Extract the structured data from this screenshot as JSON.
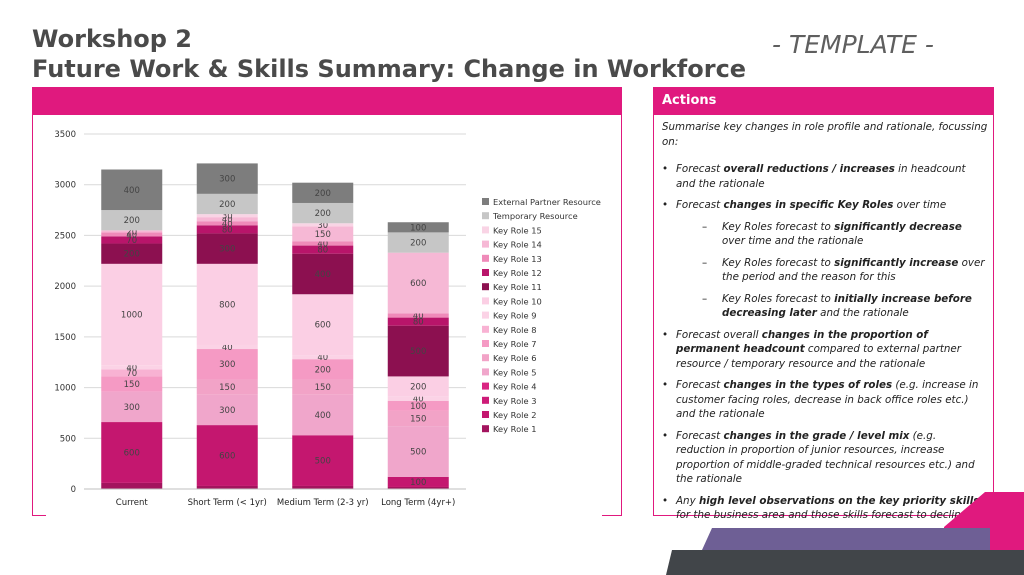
{
  "slide": {
    "title_line1": "Workshop 2",
    "title_line2": "Future Work & Skills Summary: Change in Workforce",
    "template_label": "- TEMPLATE -"
  },
  "actions": {
    "header": "Actions",
    "intro": "Summarise key changes in role profile and rationale, focussing on:",
    "bullets": [
      {
        "level": 1,
        "parts": [
          {
            "t": "Forecast "
          },
          {
            "t": "overall reductions / increases",
            "b": true
          },
          {
            "t": " in headcount and the rationale"
          }
        ]
      },
      {
        "level": 1,
        "parts": [
          {
            "t": "Forecast "
          },
          {
            "t": "changes in specific Key Roles",
            "b": true
          },
          {
            "t": " over time"
          }
        ]
      },
      {
        "level": 2,
        "parts": [
          {
            "t": "Key Roles forecast to "
          },
          {
            "t": "significantly decrease",
            "b": true
          },
          {
            "t": " over time and the rationale"
          }
        ]
      },
      {
        "level": 2,
        "parts": [
          {
            "t": "Key Roles forecast to "
          },
          {
            "t": "significantly increase",
            "b": true
          },
          {
            "t": " over the period and the reason for this"
          }
        ]
      },
      {
        "level": 2,
        "parts": [
          {
            "t": "Key Roles forecast to "
          },
          {
            "t": "initially increase before decreasing later",
            "b": true
          },
          {
            "t": " and the rationale"
          }
        ]
      },
      {
        "level": 1,
        "parts": [
          {
            "t": "Forecast overall "
          },
          {
            "t": "changes in the proportion of permanent headcount",
            "b": true
          },
          {
            "t": " compared to external partner resource / temporary resource and the rationale"
          }
        ]
      },
      {
        "level": 1,
        "parts": [
          {
            "t": "Forecast "
          },
          {
            "t": "changes in the types of roles",
            "b": true
          },
          {
            "t": " (e.g. increase in customer facing roles, decrease in back office roles etc.) and the rationale"
          }
        ]
      },
      {
        "level": 1,
        "parts": [
          {
            "t": "Forecast "
          },
          {
            "t": "changes in the grade / level mix",
            "b": true
          },
          {
            "t": " (e.g. reduction in proportion of junior resources, increase proportion of middle-graded technical resources etc.) and the rationale"
          }
        ]
      },
      {
        "level": 1,
        "parts": [
          {
            "t": "Any "
          },
          {
            "t": "high level observations on the key priority skills",
            "b": true
          },
          {
            "t": " for the business area and those skills forecast to decline"
          }
        ]
      }
    ]
  },
  "chart_data": {
    "type": "bar",
    "stacked": true,
    "categories": [
      "Current",
      "Short Term (< 1yr)",
      "Medium Term (2-3 yr)",
      "Long Term (4yr+)"
    ],
    "ylim": [
      0,
      3500
    ],
    "yticks": [
      0,
      500,
      1000,
      1500,
      2000,
      2500,
      3000,
      3500
    ],
    "grid": true,
    "legend": "right",
    "series": [
      {
        "name": "Key Role 1",
        "color": "#a3145e",
        "values": [
          60,
          30,
          30,
          20
        ]
      },
      {
        "name": "Key Role 2",
        "color": "#c4176f",
        "values": [
          600,
          600,
          500,
          100
        ]
      },
      {
        "name": "Key Role 3",
        "color": "#cd1b78",
        "values": [
          0,
          0,
          0,
          0
        ]
      },
      {
        "name": "Key Role 4",
        "color": "#d92582",
        "values": [
          0,
          0,
          0,
          0
        ]
      },
      {
        "name": "Key Role 5",
        "color": "#f0a6cb",
        "values": [
          300,
          300,
          400,
          500
        ]
      },
      {
        "name": "Key Role 6",
        "color": "#f2a3c7",
        "values": [
          0,
          150,
          150,
          150
        ]
      },
      {
        "name": "Key Role 7",
        "color": "#f59ac4",
        "values": [
          150,
          300,
          200,
          100
        ]
      },
      {
        "name": "Key Role 8",
        "color": "#f8b2d3",
        "values": [
          70,
          0,
          0,
          0
        ]
      },
      {
        "name": "Key Role 9",
        "color": "#fbd3e6",
        "values": [
          40,
          40,
          40,
          40
        ]
      },
      {
        "name": "Key Role 10",
        "color": "#fbcfe4",
        "values": [
          1000,
          800,
          600,
          200
        ]
      },
      {
        "name": "Key Role 11",
        "color": "#8c1050",
        "values": [
          200,
          300,
          400,
          500
        ]
      },
      {
        "name": "Key Role 12",
        "color": "#b8156a",
        "values": [
          70,
          80,
          80,
          80
        ]
      },
      {
        "name": "Key Role 13",
        "color": "#ef8ab9",
        "values": [
          40,
          40,
          40,
          40
        ]
      },
      {
        "name": "Key Role 14",
        "color": "#f6b8d5",
        "values": [
          20,
          40,
          150,
          600
        ]
      },
      {
        "name": "Key Role 15",
        "color": "#f9d4e5",
        "values": [
          0,
          30,
          30,
          0
        ]
      },
      {
        "name": "Temporary Resource",
        "color": "#c6c6c6",
        "values": [
          200,
          200,
          200,
          200
        ]
      },
      {
        "name": "External Partner Resource",
        "color": "#7d7d7d",
        "values": [
          400,
          300,
          200,
          100
        ]
      }
    ]
  }
}
